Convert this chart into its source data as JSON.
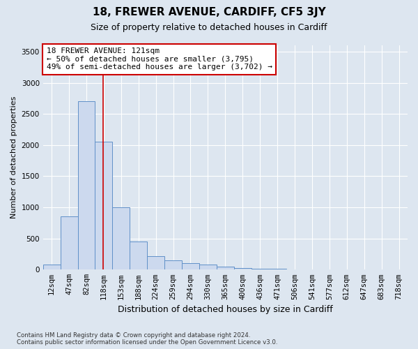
{
  "title_line1": "18, FREWER AVENUE, CARDIFF, CF5 3JY",
  "title_line2": "Size of property relative to detached houses in Cardiff",
  "xlabel": "Distribution of detached houses by size in Cardiff",
  "ylabel": "Number of detached properties",
  "footnote": "Contains HM Land Registry data © Crown copyright and database right 2024.\nContains public sector information licensed under the Open Government Licence v3.0.",
  "bar_labels": [
    "12sqm",
    "47sqm",
    "82sqm",
    "118sqm",
    "153sqm",
    "188sqm",
    "224sqm",
    "259sqm",
    "294sqm",
    "330sqm",
    "365sqm",
    "400sqm",
    "436sqm",
    "471sqm",
    "506sqm",
    "541sqm",
    "577sqm",
    "612sqm",
    "647sqm",
    "683sqm",
    "718sqm"
  ],
  "bar_values": [
    80,
    850,
    2700,
    2050,
    1000,
    450,
    220,
    150,
    100,
    80,
    50,
    30,
    15,
    10,
    5,
    3,
    2,
    1,
    1,
    0,
    0
  ],
  "bar_color": "#ccd9ee",
  "bar_edge_color": "#6090c8",
  "annotation_text": "18 FREWER AVENUE: 121sqm\n← 50% of detached houses are smaller (3,795)\n49% of semi-detached houses are larger (3,702) →",
  "annotation_box_color": "#ffffff",
  "annotation_box_edge_color": "#cc0000",
  "vline_x_index": 3,
  "vline_color": "#cc0000",
  "ylim": [
    0,
    3600
  ],
  "yticks": [
    0,
    500,
    1000,
    1500,
    2000,
    2500,
    3000,
    3500
  ],
  "bg_color": "#dde6f0",
  "plot_bg_color": "#dde6f0",
  "grid_color": "#ffffff",
  "title_fontsize": 11,
  "subtitle_fontsize": 9,
  "xlabel_fontsize": 9,
  "ylabel_fontsize": 8,
  "tick_fontsize": 7.5,
  "annotation_fontsize": 8
}
